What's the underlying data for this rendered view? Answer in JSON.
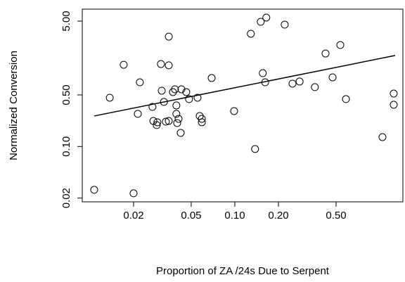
{
  "chart_data": {
    "type": "scatter",
    "x_label": "Proportion of ZA /24s Due to Serpent",
    "y_label": "Normalized Conversion",
    "log_x": true,
    "log_y": true,
    "grid": false,
    "color": "#000000",
    "xlim": [
      0.00885,
      1.446
    ],
    "ylim": [
      0.0178,
      7.26
    ],
    "xticks": [
      {
        "value": 0.02,
        "label": "0.02"
      },
      {
        "value": 0.05,
        "label": "0.05"
      },
      {
        "value": 0.1,
        "label": "0.10"
      },
      {
        "value": 0.2,
        "label": "0.20"
      },
      {
        "value": 0.5,
        "label": "0.50"
      }
    ],
    "yticks": [
      {
        "value": 0.02,
        "label": "0.02"
      },
      {
        "value": 0.1,
        "label": "0.10"
      },
      {
        "value": 0.5,
        "label": "0.50"
      },
      {
        "value": 5,
        "label": "5.00"
      }
    ],
    "x": [
      0.0107,
      0.02,
      0.0137,
      0.0171,
      0.0214,
      0.0221,
      0.027,
      0.0274,
      0.0289,
      0.0292,
      0.0309,
      0.0313,
      0.0324,
      0.0334,
      0.035,
      0.035,
      0.035,
      0.0374,
      0.0386,
      0.0395,
      0.0395,
      0.04,
      0.0409,
      0.0423,
      0.0428,
      0.0462,
      0.0483,
      0.0553,
      0.0572,
      0.0592,
      0.0592,
      0.0692,
      0.0989,
      0.129,
      0.138,
      0.151,
      0.156,
      0.162,
      0.165,
      0.221,
      0.25,
      0.28,
      0.357,
      0.423,
      0.473,
      0.535,
      0.585,
      1.045,
      1.25,
      1.25
    ],
    "values": [
      0.0259,
      0.0232,
      0.458,
      1.28,
      0.277,
      0.741,
      0.344,
      0.222,
      0.195,
      0.213,
      1.31,
      0.57,
      0.402,
      0.217,
      3.08,
      1.26,
      0.222,
      0.546,
      0.596,
      0.36,
      0.277,
      0.208,
      0.237,
      0.153,
      0.596,
      0.546,
      0.439,
      0.458,
      0.259,
      0.213,
      0.237,
      0.847,
      0.302,
      3.37,
      0.0925,
      4.89,
      0.986,
      0.741,
      5.58,
      4.48,
      0.71,
      0.759,
      0.637,
      1.82,
      0.865,
      2.37,
      0.439,
      0.134,
      0.522,
      0.368
    ],
    "fit_line": {
      "x": [
        0.0107,
        1.28
      ],
      "y": [
        0.259,
        1.71
      ]
    }
  }
}
